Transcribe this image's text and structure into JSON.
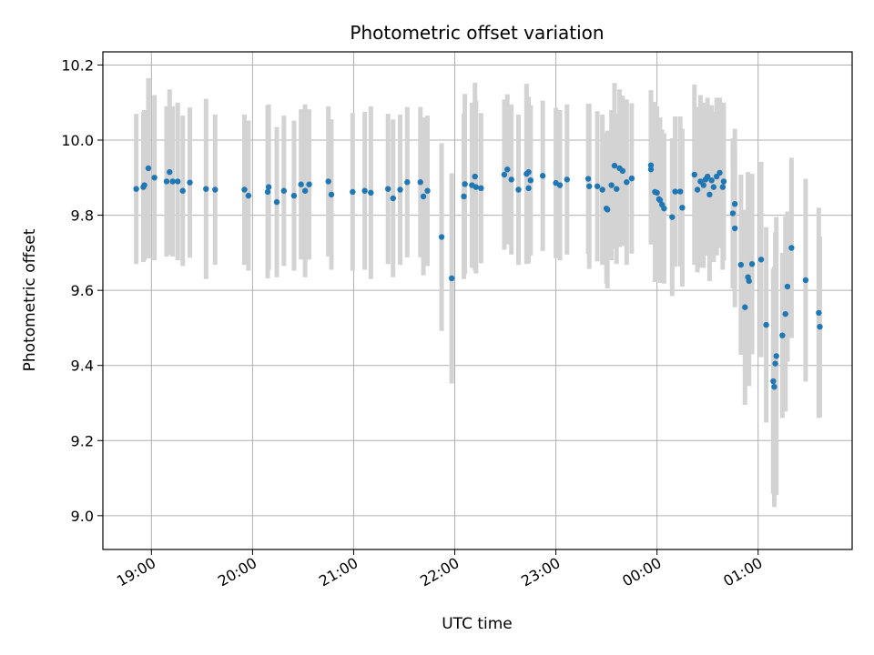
{
  "chart_data": {
    "type": "scatter",
    "title": "Photometric offset variation",
    "xlabel": "UTC time",
    "ylabel": "Photometric offset",
    "x_ticks": [
      "19:00",
      "20:00",
      "21:00",
      "22:00",
      "23:00",
      "00:00",
      "01:00"
    ],
    "x_tick_hours": [
      0,
      1,
      2,
      3,
      4,
      5,
      6
    ],
    "x_origin": "19:00",
    "xlim_hours": [
      -0.48,
      6.93
    ],
    "y_ticks": [
      9.0,
      9.2,
      9.4,
      9.6,
      9.8,
      10.0,
      10.2
    ],
    "ylim": [
      8.91,
      10.235
    ],
    "grid": true,
    "marker_color": "#1f77b4",
    "errorbar_color": "#d3d3d3",
    "points": [
      {
        "x": -0.15,
        "y": 9.87,
        "err": 0.2
      },
      {
        "x": -0.08,
        "y": 9.875,
        "err": 0.2
      },
      {
        "x": -0.07,
        "y": 9.88,
        "err": 0.2
      },
      {
        "x": -0.03,
        "y": 9.925,
        "err": 0.24
      },
      {
        "x": 0.03,
        "y": 9.9,
        "err": 0.22
      },
      {
        "x": 0.15,
        "y": 9.89,
        "err": 0.2
      },
      {
        "x": 0.18,
        "y": 9.915,
        "err": 0.22
      },
      {
        "x": 0.21,
        "y": 9.89,
        "err": 0.2
      },
      {
        "x": 0.26,
        "y": 9.89,
        "err": 0.21
      },
      {
        "x": 0.31,
        "y": 9.865,
        "err": 0.2
      },
      {
        "x": 0.38,
        "y": 9.887,
        "err": 0.2
      },
      {
        "x": 0.54,
        "y": 9.87,
        "err": 0.24
      },
      {
        "x": 0.63,
        "y": 9.868,
        "err": 0.2
      },
      {
        "x": 0.92,
        "y": 9.868,
        "err": 0.2
      },
      {
        "x": 0.96,
        "y": 9.852,
        "err": 0.2
      },
      {
        "x": 1.15,
        "y": 9.862,
        "err": 0.23
      },
      {
        "x": 1.16,
        "y": 9.875,
        "err": 0.22
      },
      {
        "x": 1.24,
        "y": 9.835,
        "err": 0.2
      },
      {
        "x": 1.31,
        "y": 9.865,
        "err": 0.2
      },
      {
        "x": 1.41,
        "y": 9.852,
        "err": 0.2
      },
      {
        "x": 1.48,
        "y": 9.882,
        "err": 0.2
      },
      {
        "x": 1.52,
        "y": 9.865,
        "err": 0.23
      },
      {
        "x": 1.56,
        "y": 9.882,
        "err": 0.2
      },
      {
        "x": 1.75,
        "y": 9.89,
        "err": 0.2
      },
      {
        "x": 1.78,
        "y": 9.855,
        "err": 0.2
      },
      {
        "x": 1.99,
        "y": 9.862,
        "err": 0.21
      },
      {
        "x": 2.11,
        "y": 9.865,
        "err": 0.21
      },
      {
        "x": 2.17,
        "y": 9.86,
        "err": 0.23
      },
      {
        "x": 2.34,
        "y": 9.87,
        "err": 0.2
      },
      {
        "x": 2.39,
        "y": 9.845,
        "err": 0.21
      },
      {
        "x": 2.46,
        "y": 9.868,
        "err": 0.2
      },
      {
        "x": 2.53,
        "y": 9.888,
        "err": 0.2
      },
      {
        "x": 2.66,
        "y": 9.888,
        "err": 0.2
      },
      {
        "x": 2.69,
        "y": 9.85,
        "err": 0.21
      },
      {
        "x": 2.73,
        "y": 9.865,
        "err": 0.2
      },
      {
        "x": 2.87,
        "y": 9.742,
        "err": 0.25
      },
      {
        "x": 2.97,
        "y": 9.632,
        "err": 0.28
      },
      {
        "x": 3.09,
        "y": 9.85,
        "err": 0.22
      },
      {
        "x": 3.1,
        "y": 9.883,
        "err": 0.24
      },
      {
        "x": 3.17,
        "y": 9.88,
        "err": 0.22
      },
      {
        "x": 3.2,
        "y": 9.903,
        "err": 0.25
      },
      {
        "x": 3.21,
        "y": 9.875,
        "err": 0.23
      },
      {
        "x": 3.26,
        "y": 9.872,
        "err": 0.2
      },
      {
        "x": 3.49,
        "y": 9.908,
        "err": 0.2
      },
      {
        "x": 3.52,
        "y": 9.922,
        "err": 0.2
      },
      {
        "x": 3.56,
        "y": 9.895,
        "err": 0.2
      },
      {
        "x": 3.63,
        "y": 9.868,
        "err": 0.2
      },
      {
        "x": 3.71,
        "y": 9.91,
        "err": 0.24
      },
      {
        "x": 3.73,
        "y": 9.915,
        "err": 0.2
      },
      {
        "x": 3.73,
        "y": 9.872,
        "err": 0.2
      },
      {
        "x": 3.75,
        "y": 9.893,
        "err": 0.2
      },
      {
        "x": 3.87,
        "y": 9.905,
        "err": 0.2
      },
      {
        "x": 4.0,
        "y": 9.886,
        "err": 0.2
      },
      {
        "x": 4.04,
        "y": 9.88,
        "err": 0.2
      },
      {
        "x": 4.11,
        "y": 9.895,
        "err": 0.2
      },
      {
        "x": 4.32,
        "y": 9.897,
        "err": 0.2
      },
      {
        "x": 4.33,
        "y": 9.877,
        "err": 0.22
      },
      {
        "x": 4.41,
        "y": 9.877,
        "err": 0.2
      },
      {
        "x": 4.46,
        "y": 9.868,
        "err": 0.2
      },
      {
        "x": 4.5,
        "y": 9.818,
        "err": 0.2
      },
      {
        "x": 4.51,
        "y": 9.815,
        "err": 0.21
      },
      {
        "x": 4.55,
        "y": 9.88,
        "err": 0.2
      },
      {
        "x": 4.58,
        "y": 9.932,
        "err": 0.22
      },
      {
        "x": 4.6,
        "y": 9.87,
        "err": 0.2
      },
      {
        "x": 4.63,
        "y": 9.925,
        "err": 0.21
      },
      {
        "x": 4.66,
        "y": 9.918,
        "err": 0.2
      },
      {
        "x": 4.7,
        "y": 9.888,
        "err": 0.22
      },
      {
        "x": 4.75,
        "y": 9.898,
        "err": 0.2
      },
      {
        "x": 4.94,
        "y": 9.933,
        "err": 0.2
      },
      {
        "x": 4.94,
        "y": 9.922,
        "err": 0.2
      },
      {
        "x": 4.98,
        "y": 9.862,
        "err": 0.24
      },
      {
        "x": 5.0,
        "y": 9.86,
        "err": 0.23
      },
      {
        "x": 5.02,
        "y": 9.843,
        "err": 0.21
      },
      {
        "x": 5.03,
        "y": 9.84,
        "err": 0.22
      },
      {
        "x": 5.05,
        "y": 9.828,
        "err": 0.2
      },
      {
        "x": 5.07,
        "y": 9.818,
        "err": 0.2
      },
      {
        "x": 5.15,
        "y": 9.795,
        "err": 0.21
      },
      {
        "x": 5.18,
        "y": 9.863,
        "err": 0.2
      },
      {
        "x": 5.23,
        "y": 9.863,
        "err": 0.2
      },
      {
        "x": 5.25,
        "y": 9.82,
        "err": 0.21
      },
      {
        "x": 5.37,
        "y": 9.908,
        "err": 0.24
      },
      {
        "x": 5.4,
        "y": 9.868,
        "err": 0.22
      },
      {
        "x": 5.43,
        "y": 9.89,
        "err": 0.23
      },
      {
        "x": 5.46,
        "y": 9.88,
        "err": 0.22
      },
      {
        "x": 5.48,
        "y": 9.895,
        "err": 0.2
      },
      {
        "x": 5.5,
        "y": 9.903,
        "err": 0.21
      },
      {
        "x": 5.52,
        "y": 9.855,
        "err": 0.23
      },
      {
        "x": 5.54,
        "y": 9.893,
        "err": 0.2
      },
      {
        "x": 5.56,
        "y": 9.875,
        "err": 0.2
      },
      {
        "x": 5.59,
        "y": 9.903,
        "err": 0.21
      },
      {
        "x": 5.62,
        "y": 9.913,
        "err": 0.2
      },
      {
        "x": 5.65,
        "y": 9.875,
        "err": 0.22
      },
      {
        "x": 5.66,
        "y": 9.89,
        "err": 0.21
      },
      {
        "x": 5.75,
        "y": 9.805,
        "err": 0.2
      },
      {
        "x": 5.77,
        "y": 9.83,
        "err": 0.2
      },
      {
        "x": 5.77,
        "y": 9.765,
        "err": 0.21
      },
      {
        "x": 5.83,
        "y": 9.668,
        "err": 0.24
      },
      {
        "x": 5.87,
        "y": 9.555,
        "err": 0.26
      },
      {
        "x": 5.9,
        "y": 9.635,
        "err": 0.28
      },
      {
        "x": 5.91,
        "y": 9.625,
        "err": 0.28
      },
      {
        "x": 5.94,
        "y": 9.67,
        "err": 0.24
      },
      {
        "x": 6.03,
        "y": 9.682,
        "err": 0.26
      },
      {
        "x": 6.08,
        "y": 9.508,
        "err": 0.26
      },
      {
        "x": 6.15,
        "y": 9.358,
        "err": 0.3
      },
      {
        "x": 6.16,
        "y": 9.343,
        "err": 0.32
      },
      {
        "x": 6.17,
        "y": 9.405,
        "err": 0.35
      },
      {
        "x": 6.18,
        "y": 9.425,
        "err": 0.37
      },
      {
        "x": 6.24,
        "y": 9.48,
        "err": 0.22
      },
      {
        "x": 6.27,
        "y": 9.537,
        "err": 0.26
      },
      {
        "x": 6.29,
        "y": 9.61,
        "err": 0.2
      },
      {
        "x": 6.33,
        "y": 9.713,
        "err": 0.24
      },
      {
        "x": 6.47,
        "y": 9.627,
        "err": 0.27
      },
      {
        "x": 6.6,
        "y": 9.54,
        "err": 0.28
      },
      {
        "x": 6.61,
        "y": 9.503,
        "err": 0.24
      }
    ]
  }
}
